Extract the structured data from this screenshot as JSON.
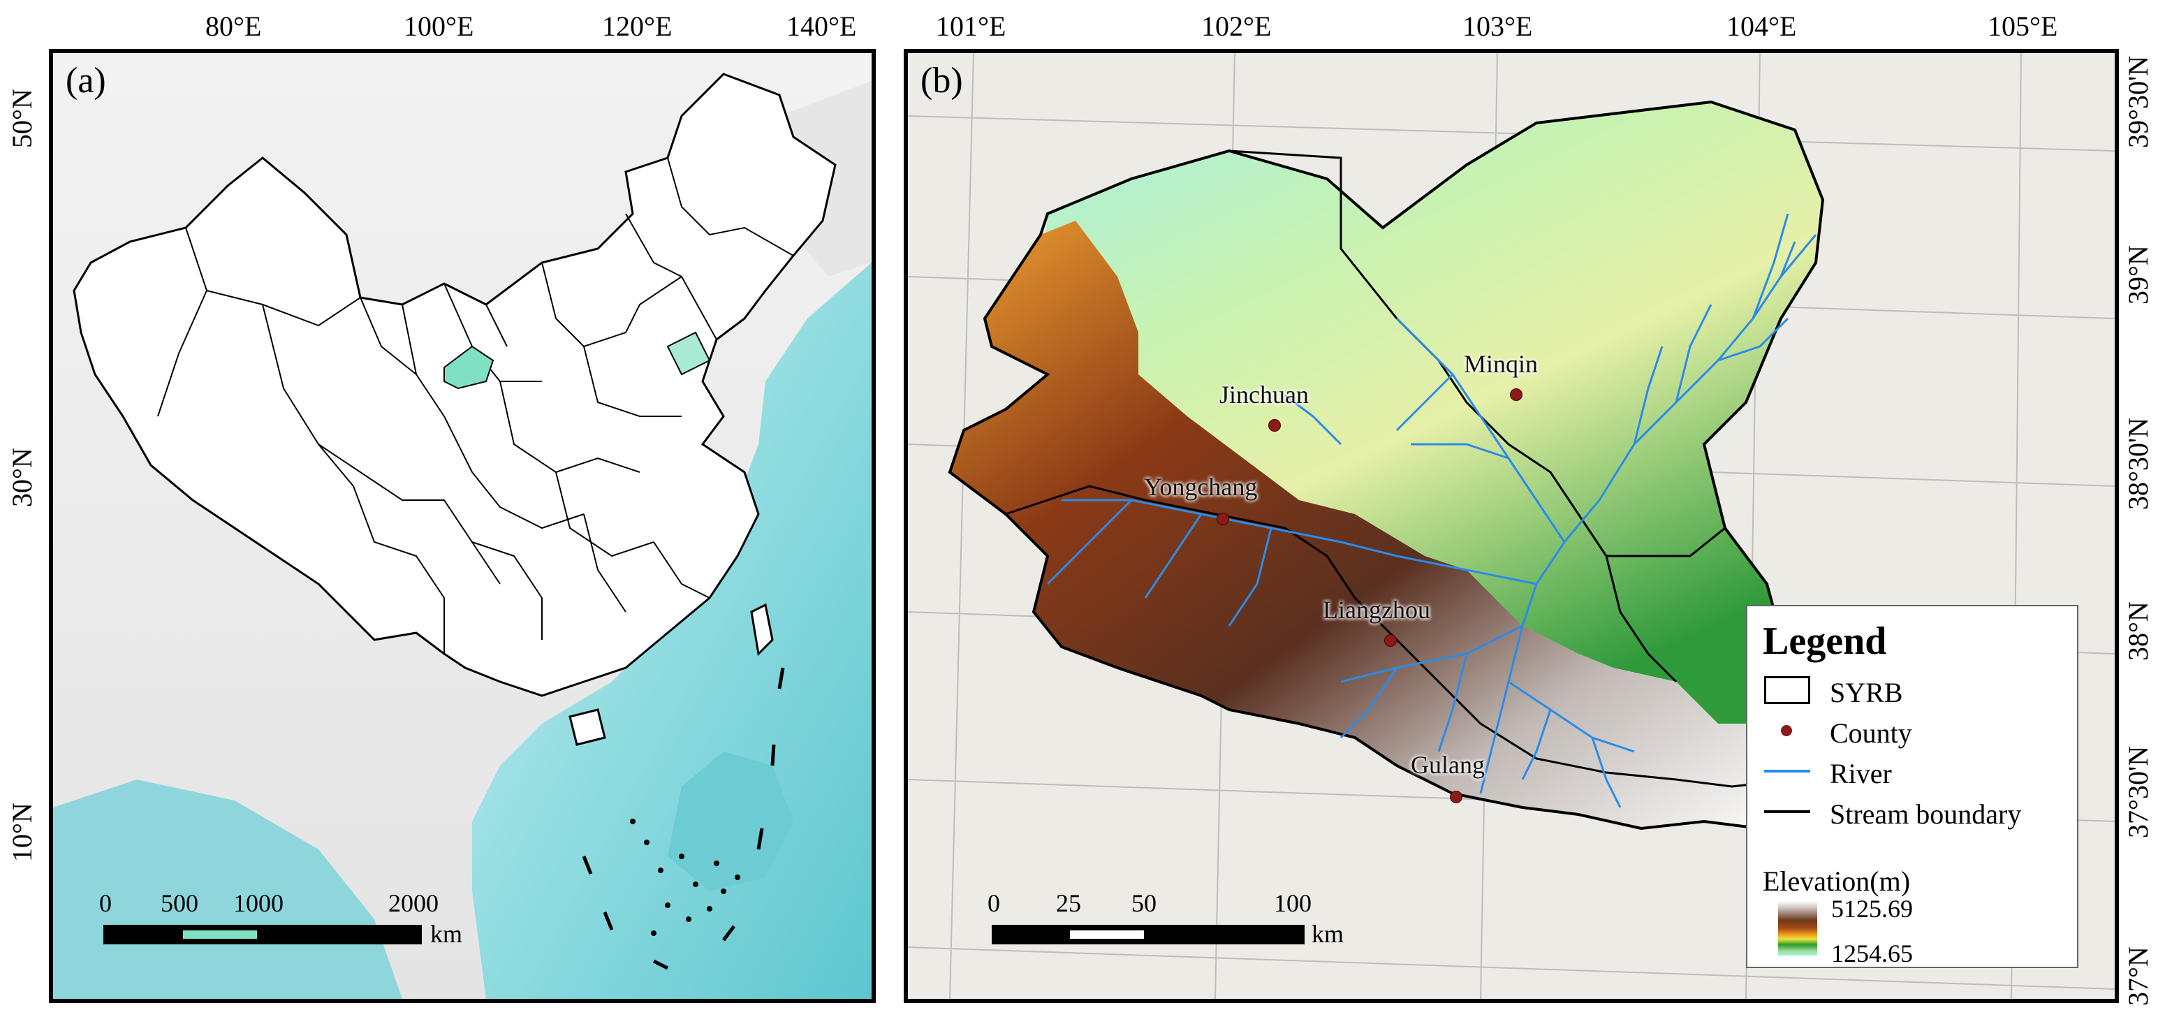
{
  "panel_a": {
    "label": "(a)",
    "lon_ticks": [
      "80°E",
      "100°E",
      "120°E",
      "140°E"
    ],
    "lat_ticks": [
      "50°N",
      "30°N",
      "10°N"
    ],
    "scale": {
      "labels": [
        "0",
        "500",
        "1000",
        "2000"
      ],
      "unit": "km"
    }
  },
  "panel_b": {
    "label": "(b)",
    "lon_ticks": [
      "101°E",
      "102°E",
      "103°E",
      "104°E",
      "105°E"
    ],
    "lat_ticks": [
      "39°30'N",
      "39°N",
      "38°30'N",
      "38°N",
      "37°30'N",
      "37°N"
    ],
    "counties": [
      "Jinchuan",
      "Minqin",
      "Yongchang",
      "Liangzhou",
      "Gulang"
    ],
    "scale": {
      "labels": [
        "0",
        "25",
        "50",
        "100"
      ],
      "unit": "km"
    }
  },
  "legend": {
    "title": "Legend",
    "items": [
      {
        "label": "SYRB",
        "symbol": "polygon-outline"
      },
      {
        "label": "County",
        "symbol": "dot",
        "color": "#8b1a1a"
      },
      {
        "label": "River",
        "symbol": "line",
        "color": "#2b8be8"
      },
      {
        "label": "Stream boundary",
        "symbol": "line",
        "color": "#000000"
      }
    ],
    "elevation": {
      "title": "Elevation(m)",
      "max": "5125.69",
      "min": "1254.65"
    }
  },
  "colors": {
    "river": "#2b8be8",
    "county": "#8b1a1a",
    "highlight": "#7fe0c4",
    "sea": "#7fd0d8"
  }
}
